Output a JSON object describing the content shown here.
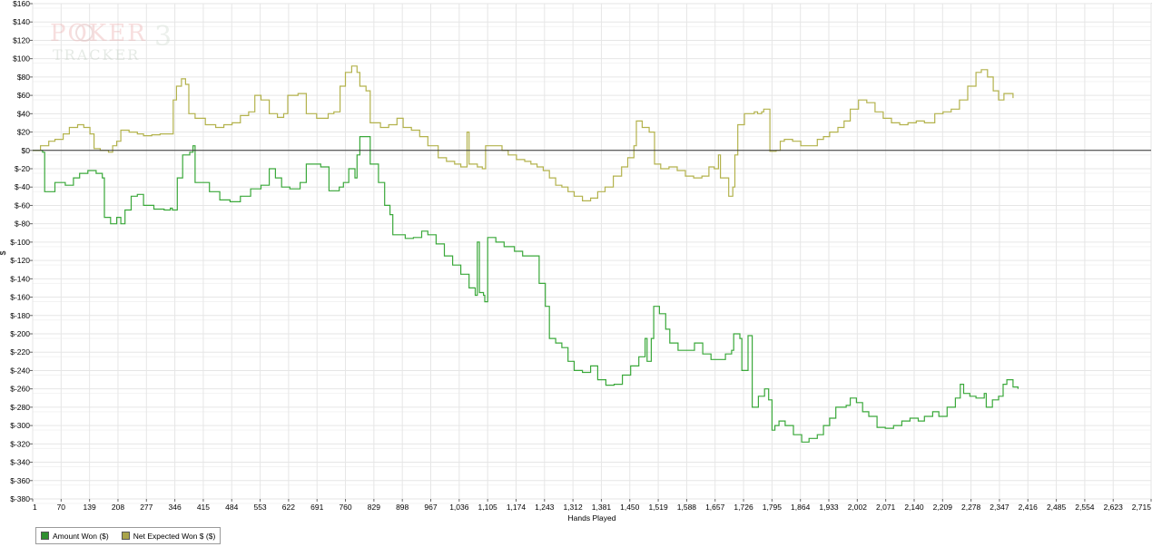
{
  "brand": {
    "line1": "POKER",
    "digit": "3",
    "line2": "TRACKER"
  },
  "chart_data": {
    "type": "line",
    "xlabel": "Hands Played",
    "ylabel": "$",
    "xlim": [
      1,
      2715
    ],
    "ylim": [
      -380,
      160
    ],
    "x_ticks": [
      1,
      70,
      139,
      208,
      277,
      346,
      415,
      484,
      553,
      622,
      691,
      760,
      829,
      898,
      967,
      1036,
      1105,
      1174,
      1243,
      1312,
      1381,
      1450,
      1519,
      1588,
      1657,
      1726,
      1795,
      1864,
      1933,
      2002,
      2071,
      2140,
      2209,
      2278,
      2347,
      2416,
      2485,
      2554,
      2623,
      2715
    ],
    "x_tick_labels": [
      "1",
      "70",
      "139",
      "208",
      "277",
      "346",
      "415",
      "484",
      "553",
      "622",
      "691",
      "760",
      "829",
      "898",
      "967",
      "1,036",
      "1,105",
      "1,174",
      "1,243",
      "1,312",
      "1,381",
      "1,450",
      "1,519",
      "1,588",
      "1,657",
      "1,726",
      "1,795",
      "1,864",
      "1,933",
      "2,002",
      "2,071",
      "2,140",
      "2,209",
      "2,278",
      "2,347",
      "2,416",
      "2,485",
      "2,554",
      "2,623",
      "2,715"
    ],
    "y_ticks": [
      160,
      140,
      120,
      100,
      80,
      60,
      40,
      20,
      0,
      -20,
      -40,
      -60,
      -80,
      -100,
      -120,
      -140,
      -160,
      -180,
      -200,
      -220,
      -240,
      -260,
      -280,
      -300,
      -320,
      -340,
      -360,
      -380
    ],
    "y_tick_labels": [
      "$160",
      "$140",
      "$120",
      "$100",
      "$80",
      "$60",
      "$40",
      "$20",
      "$0",
      "$-20",
      "$-40",
      "$-60",
      "$-80",
      "$-100",
      "$-120",
      "$-140",
      "$-160",
      "$-180",
      "$-200",
      "$-220",
      "$-240",
      "$-260",
      "$-280",
      "$-300",
      "$-320",
      "$-340",
      "$-360",
      "$-380"
    ],
    "grid": true,
    "zero_line": true,
    "legend_position": "bottom-left",
    "series": [
      {
        "name": "Amount Won ($)",
        "color": "#3aa83a",
        "swatch": "#2f8f2f",
        "points": [
          [
            1,
            0
          ],
          [
            25,
            -2
          ],
          [
            30,
            -45
          ],
          [
            55,
            -35
          ],
          [
            80,
            -38
          ],
          [
            100,
            -30
          ],
          [
            115,
            -25
          ],
          [
            135,
            -22
          ],
          [
            155,
            -25
          ],
          [
            170,
            -30
          ],
          [
            175,
            -73
          ],
          [
            190,
            -80
          ],
          [
            205,
            -73
          ],
          [
            215,
            -80
          ],
          [
            225,
            -65
          ],
          [
            240,
            -50
          ],
          [
            255,
            -48
          ],
          [
            270,
            -60
          ],
          [
            295,
            -64
          ],
          [
            320,
            -65
          ],
          [
            335,
            -63
          ],
          [
            340,
            -65
          ],
          [
            352,
            -30
          ],
          [
            365,
            -5
          ],
          [
            382,
            -2
          ],
          [
            390,
            5
          ],
          [
            395,
            -35
          ],
          [
            430,
            -45
          ],
          [
            455,
            -54
          ],
          [
            480,
            -56
          ],
          [
            505,
            -50
          ],
          [
            530,
            -42
          ],
          [
            555,
            -38
          ],
          [
            575,
            -20
          ],
          [
            590,
            -30
          ],
          [
            605,
            -40
          ],
          [
            625,
            -42
          ],
          [
            650,
            -35
          ],
          [
            665,
            -15
          ],
          [
            700,
            -18
          ],
          [
            720,
            -44
          ],
          [
            745,
            -40
          ],
          [
            755,
            -35
          ],
          [
            768,
            -20
          ],
          [
            783,
            -30
          ],
          [
            788,
            -5
          ],
          [
            795,
            15
          ],
          [
            810,
            15
          ],
          [
            820,
            -15
          ],
          [
            840,
            -35
          ],
          [
            855,
            -60
          ],
          [
            868,
            -70
          ],
          [
            875,
            -92
          ],
          [
            905,
            -96
          ],
          [
            925,
            -95
          ],
          [
            945,
            -88
          ],
          [
            960,
            -92
          ],
          [
            980,
            -102
          ],
          [
            1000,
            -115
          ],
          [
            1020,
            -125
          ],
          [
            1040,
            -135
          ],
          [
            1060,
            -150
          ],
          [
            1075,
            -158
          ],
          [
            1080,
            -100
          ],
          [
            1085,
            -155
          ],
          [
            1095,
            -158
          ],
          [
            1098,
            -165
          ],
          [
            1105,
            -95
          ],
          [
            1125,
            -100
          ],
          [
            1145,
            -105
          ],
          [
            1170,
            -110
          ],
          [
            1190,
            -115
          ],
          [
            1220,
            -115
          ],
          [
            1230,
            -145
          ],
          [
            1245,
            -170
          ],
          [
            1255,
            -205
          ],
          [
            1270,
            -210
          ],
          [
            1285,
            -215
          ],
          [
            1300,
            -230
          ],
          [
            1315,
            -240
          ],
          [
            1335,
            -242
          ],
          [
            1355,
            -235
          ],
          [
            1372,
            -250
          ],
          [
            1392,
            -256
          ],
          [
            1412,
            -255
          ],
          [
            1432,
            -245
          ],
          [
            1452,
            -235
          ],
          [
            1472,
            -225
          ],
          [
            1487,
            -205
          ],
          [
            1492,
            -230
          ],
          [
            1502,
            -205
          ],
          [
            1508,
            -170
          ],
          [
            1522,
            -178
          ],
          [
            1537,
            -195
          ],
          [
            1547,
            -210
          ],
          [
            1567,
            -218
          ],
          [
            1587,
            -218
          ],
          [
            1607,
            -210
          ],
          [
            1627,
            -222
          ],
          [
            1647,
            -228
          ],
          [
            1662,
            -228
          ],
          [
            1682,
            -222
          ],
          [
            1697,
            -218
          ],
          [
            1702,
            -200
          ],
          [
            1717,
            -205
          ],
          [
            1722,
            -240
          ],
          [
            1737,
            -202
          ],
          [
            1747,
            -280
          ],
          [
            1762,
            -268
          ],
          [
            1777,
            -260
          ],
          [
            1787,
            -272
          ],
          [
            1795,
            -305
          ],
          [
            1802,
            -300
          ],
          [
            1812,
            -295
          ],
          [
            1827,
            -300
          ],
          [
            1847,
            -310
          ],
          [
            1867,
            -318
          ],
          [
            1885,
            -314
          ],
          [
            1905,
            -310
          ],
          [
            1920,
            -300
          ],
          [
            1935,
            -292
          ],
          [
            1950,
            -280
          ],
          [
            1975,
            -278
          ],
          [
            1985,
            -270
          ],
          [
            2000,
            -275
          ],
          [
            2015,
            -285
          ],
          [
            2030,
            -290
          ],
          [
            2050,
            -302
          ],
          [
            2070,
            -303
          ],
          [
            2090,
            -300
          ],
          [
            2110,
            -295
          ],
          [
            2130,
            -292
          ],
          [
            2150,
            -295
          ],
          [
            2165,
            -290
          ],
          [
            2185,
            -285
          ],
          [
            2200,
            -290
          ],
          [
            2220,
            -280
          ],
          [
            2240,
            -270
          ],
          [
            2252,
            -255
          ],
          [
            2260,
            -265
          ],
          [
            2275,
            -268
          ],
          [
            2290,
            -270
          ],
          [
            2310,
            -265
          ],
          [
            2315,
            -280
          ],
          [
            2330,
            -272
          ],
          [
            2345,
            -268
          ],
          [
            2356,
            -255
          ],
          [
            2365,
            -250
          ],
          [
            2380,
            -258
          ],
          [
            2392,
            -260
          ]
        ]
      },
      {
        "name": "Net Expected Won $ ($)",
        "color": "#b3b24c",
        "swatch": "#a9a44a",
        "points": [
          [
            1,
            0
          ],
          [
            20,
            5
          ],
          [
            40,
            10
          ],
          [
            55,
            12
          ],
          [
            75,
            18
          ],
          [
            90,
            25
          ],
          [
            110,
            28
          ],
          [
            125,
            25
          ],
          [
            140,
            18
          ],
          [
            150,
            2
          ],
          [
            165,
            0
          ],
          [
            185,
            -2
          ],
          [
            195,
            5
          ],
          [
            205,
            10
          ],
          [
            215,
            22
          ],
          [
            235,
            20
          ],
          [
            255,
            18
          ],
          [
            270,
            16
          ],
          [
            290,
            17
          ],
          [
            310,
            18
          ],
          [
            325,
            18
          ],
          [
            342,
            55
          ],
          [
            350,
            70
          ],
          [
            362,
            78
          ],
          [
            372,
            72
          ],
          [
            380,
            40
          ],
          [
            395,
            35
          ],
          [
            420,
            28
          ],
          [
            445,
            25
          ],
          [
            465,
            28
          ],
          [
            485,
            30
          ],
          [
            505,
            38
          ],
          [
            525,
            42
          ],
          [
            540,
            60
          ],
          [
            555,
            55
          ],
          [
            575,
            40
          ],
          [
            595,
            36
          ],
          [
            610,
            40
          ],
          [
            620,
            60
          ],
          [
            645,
            62
          ],
          [
            665,
            40
          ],
          [
            690,
            35
          ],
          [
            705,
            35
          ],
          [
            718,
            40
          ],
          [
            732,
            42
          ],
          [
            747,
            70
          ],
          [
            760,
            85
          ],
          [
            775,
            92
          ],
          [
            788,
            85
          ],
          [
            795,
            70
          ],
          [
            810,
            65
          ],
          [
            820,
            30
          ],
          [
            845,
            25
          ],
          [
            865,
            28
          ],
          [
            885,
            35
          ],
          [
            900,
            25
          ],
          [
            920,
            22
          ],
          [
            940,
            15
          ],
          [
            960,
            5
          ],
          [
            985,
            -8
          ],
          [
            1005,
            -12
          ],
          [
            1025,
            -15
          ],
          [
            1040,
            -18
          ],
          [
            1055,
            20
          ],
          [
            1060,
            -15
          ],
          [
            1080,
            -18
          ],
          [
            1092,
            -20
          ],
          [
            1100,
            5
          ],
          [
            1120,
            5
          ],
          [
            1140,
            0
          ],
          [
            1155,
            -5
          ],
          [
            1175,
            -10
          ],
          [
            1195,
            -12
          ],
          [
            1210,
            -15
          ],
          [
            1225,
            -18
          ],
          [
            1240,
            -22
          ],
          [
            1255,
            -30
          ],
          [
            1270,
            -38
          ],
          [
            1285,
            -40
          ],
          [
            1300,
            -45
          ],
          [
            1315,
            -50
          ],
          [
            1335,
            -55
          ],
          [
            1355,
            -52
          ],
          [
            1372,
            -45
          ],
          [
            1390,
            -40
          ],
          [
            1410,
            -28
          ],
          [
            1430,
            -18
          ],
          [
            1445,
            -8
          ],
          [
            1460,
            5
          ],
          [
            1466,
            32
          ],
          [
            1480,
            25
          ],
          [
            1497,
            20
          ],
          [
            1510,
            -15
          ],
          [
            1525,
            -20
          ],
          [
            1545,
            -18
          ],
          [
            1565,
            -22
          ],
          [
            1585,
            -28
          ],
          [
            1605,
            -30
          ],
          [
            1625,
            -28
          ],
          [
            1642,
            -18
          ],
          [
            1655,
            -20
          ],
          [
            1665,
            -5
          ],
          [
            1670,
            -30
          ],
          [
            1680,
            -30
          ],
          [
            1690,
            -50
          ],
          [
            1700,
            -40
          ],
          [
            1705,
            -5
          ],
          [
            1712,
            28
          ],
          [
            1728,
            40
          ],
          [
            1742,
            40
          ],
          [
            1752,
            42
          ],
          [
            1760,
            40
          ],
          [
            1770,
            42
          ],
          [
            1775,
            45
          ],
          [
            1790,
            -1
          ],
          [
            1805,
            0
          ],
          [
            1815,
            10
          ],
          [
            1825,
            12
          ],
          [
            1845,
            10
          ],
          [
            1865,
            5
          ],
          [
            1885,
            5
          ],
          [
            1905,
            12
          ],
          [
            1920,
            15
          ],
          [
            1935,
            20
          ],
          [
            1955,
            25
          ],
          [
            1970,
            32
          ],
          [
            1985,
            45
          ],
          [
            2005,
            55
          ],
          [
            2025,
            52
          ],
          [
            2045,
            42
          ],
          [
            2065,
            35
          ],
          [
            2085,
            30
          ],
          [
            2105,
            28
          ],
          [
            2125,
            30
          ],
          [
            2145,
            32
          ],
          [
            2165,
            30
          ],
          [
            2190,
            40
          ],
          [
            2210,
            42
          ],
          [
            2230,
            45
          ],
          [
            2250,
            55
          ],
          [
            2270,
            70
          ],
          [
            2290,
            85
          ],
          [
            2303,
            88
          ],
          [
            2318,
            80
          ],
          [
            2332,
            65
          ],
          [
            2345,
            55
          ],
          [
            2358,
            62
          ],
          [
            2380,
            57
          ]
        ]
      }
    ]
  }
}
